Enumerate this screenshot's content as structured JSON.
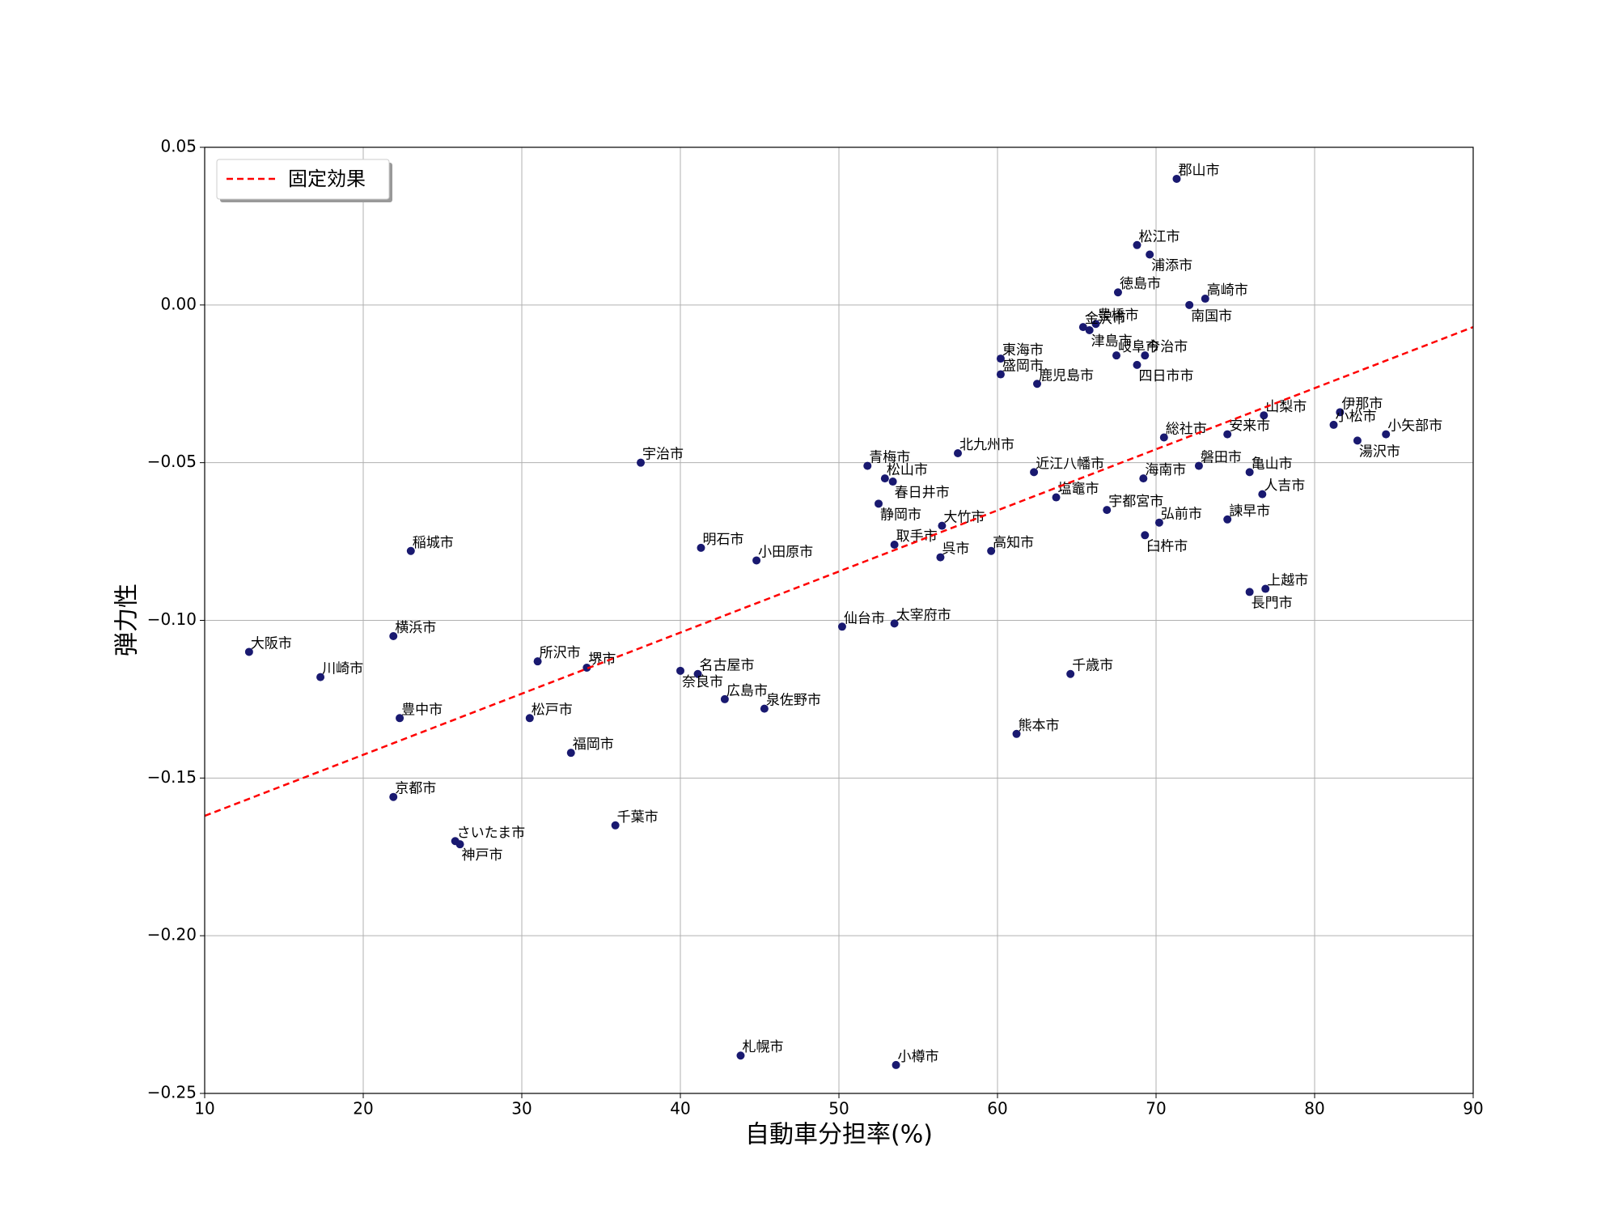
{
  "chart_data": {
    "type": "scatter",
    "xlabel": "自動車分担率(%)",
    "ylabel": "弾力性",
    "xlim": [
      10,
      90
    ],
    "ylim": [
      -0.25,
      0.05
    ],
    "xticks": [
      10,
      20,
      30,
      40,
      50,
      60,
      70,
      80,
      90
    ],
    "yticks": [
      {
        "value": -0.25,
        "label": "−0.25"
      },
      {
        "value": -0.2,
        "label": "−0.20"
      },
      {
        "value": -0.15,
        "label": "−0.15"
      },
      {
        "value": -0.1,
        "label": "−0.10"
      },
      {
        "value": -0.05,
        "label": "−0.05"
      },
      {
        "value": 0,
        "label": "0.00"
      },
      {
        "value": 0.05,
        "label": "0.05"
      }
    ],
    "grid": true,
    "legend": "upper left",
    "color": "#191970",
    "labels": [
      "郡山市",
      "松江市",
      "浦添市",
      "徳島市",
      "高崎市",
      "南国市",
      "豊橋市",
      "金沢市",
      "津島市",
      "今治市",
      "岐阜市",
      "四日市市",
      "東海市",
      "盛岡市",
      "鹿児島市",
      "山梨市",
      "伊那市",
      "小松市",
      "小矢部市",
      "湯沢市",
      "総社市",
      "安来市",
      "宇治市",
      "北九州市",
      "青梅市",
      "近江八幡市",
      "磐田市",
      "亀山市",
      "海南市",
      "松山市",
      "春日井市",
      "人吉市",
      "塩竈市",
      "宇都宮市",
      "静岡市",
      "諫早市",
      "弘前市",
      "大竹市",
      "臼杵市",
      "取手市",
      "稲城市",
      "明石市",
      "高知市",
      "呉市",
      "小田原市",
      "上越市",
      "長門市",
      "仙台市",
      "太宰府市",
      "横浜市",
      "大阪市",
      "所沢市",
      "堺市",
      "名古屋市",
      "奈良市",
      "千歳市",
      "川崎市",
      "広島市",
      "泉佐野市",
      "豊中市",
      "松戸市",
      "熊本市",
      "福岡市",
      "京都市",
      "千葉市",
      "さいたま市",
      "神戸市",
      "札幌市",
      "小樽市"
    ],
    "x": [
      71.3,
      68.8,
      69.6,
      67.6,
      73.1,
      72.1,
      66.2,
      65.4,
      65.8,
      69.3,
      67.5,
      68.8,
      60.2,
      60.2,
      62.5,
      76.8,
      81.6,
      81.2,
      84.5,
      82.7,
      70.5,
      74.5,
      37.5,
      57.5,
      51.8,
      62.3,
      72.7,
      75.9,
      69.2,
      52.9,
      53.4,
      76.7,
      63.7,
      66.9,
      52.5,
      74.5,
      70.2,
      56.5,
      69.3,
      53.5,
      23.0,
      41.3,
      59.6,
      56.4,
      44.8,
      76.9,
      75.9,
      50.2,
      53.5,
      21.9,
      12.8,
      31.0,
      34.1,
      41.1,
      40.0,
      64.6,
      17.3,
      42.8,
      45.3,
      22.3,
      30.5,
      61.2,
      33.1,
      21.9,
      35.9,
      25.8,
      26.1,
      43.8,
      53.6
    ],
    "values": [
      0.04,
      0.019,
      0.016,
      0.004,
      0.002,
      0.0,
      -0.006,
      -0.007,
      -0.008,
      -0.016,
      -0.016,
      -0.019,
      -0.017,
      -0.022,
      -0.025,
      -0.035,
      -0.034,
      -0.038,
      -0.041,
      -0.043,
      -0.042,
      -0.041,
      -0.05,
      -0.047,
      -0.051,
      -0.053,
      -0.051,
      -0.053,
      -0.055,
      -0.055,
      -0.056,
      -0.06,
      -0.061,
      -0.065,
      -0.063,
      -0.068,
      -0.069,
      -0.07,
      -0.073,
      -0.076,
      -0.078,
      -0.077,
      -0.078,
      -0.08,
      -0.081,
      -0.09,
      -0.091,
      -0.102,
      -0.101,
      -0.105,
      -0.11,
      -0.113,
      -0.115,
      -0.117,
      -0.116,
      -0.117,
      -0.118,
      -0.125,
      -0.128,
      -0.131,
      -0.131,
      -0.136,
      -0.142,
      -0.156,
      -0.165,
      -0.17,
      -0.171,
      -0.238,
      -0.241
    ],
    "fit": {
      "name": "固定効果",
      "color": "#ff0000",
      "x": [
        10,
        90
      ],
      "values": [
        -0.162,
        -0.007
      ]
    }
  }
}
